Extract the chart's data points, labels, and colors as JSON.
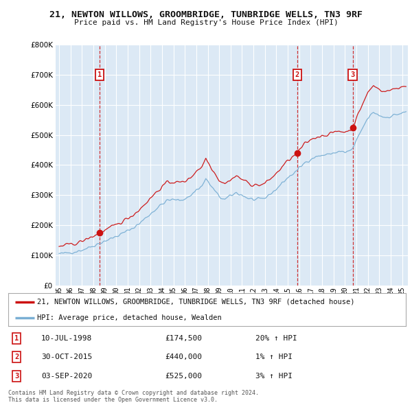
{
  "title": "21, NEWTON WILLOWS, GROOMBRIDGE, TUNBRIDGE WELLS, TN3 9RF",
  "subtitle": "Price paid vs. HM Land Registry's House Price Index (HPI)",
  "background_color": "#ffffff",
  "plot_bg_color": "#dce9f5",
  "grid_color": "#ffffff",
  "ylim": [
    0,
    800000
  ],
  "yticks": [
    0,
    100000,
    200000,
    300000,
    400000,
    500000,
    600000,
    700000,
    800000
  ],
  "ytick_labels": [
    "£0",
    "£100K",
    "£200K",
    "£300K",
    "£400K",
    "£500K",
    "£600K",
    "£700K",
    "£800K"
  ],
  "hpi_color": "#7aafd4",
  "price_color": "#cc1111",
  "sale_marker_color": "#cc1111",
  "dashed_color": "#cc1111",
  "transactions": [
    {
      "label": "1",
      "date_x": 1998.53,
      "price": 174500,
      "pct": "20%",
      "date_str": "10-JUL-1998"
    },
    {
      "label": "2",
      "date_x": 2015.83,
      "price": 440000,
      "pct": "1%",
      "date_str": "30-OCT-2015"
    },
    {
      "label": "3",
      "date_x": 2020.67,
      "price": 525000,
      "pct": "3%",
      "date_str": "03-SEP-2020"
    }
  ],
  "legend_property_label": "21, NEWTON WILLOWS, GROOMBRIDGE, TUNBRIDGE WELLS, TN3 9RF (detached house)",
  "legend_hpi_label": "HPI: Average price, detached house, Wealden",
  "footnote": "Contains HM Land Registry data © Crown copyright and database right 2024.\nThis data is licensed under the Open Government Licence v3.0.",
  "xtick_years": [
    1995,
    1996,
    1997,
    1998,
    1999,
    2000,
    2001,
    2002,
    2003,
    2004,
    2005,
    2006,
    2007,
    2008,
    2009,
    2010,
    2011,
    2012,
    2013,
    2014,
    2015,
    2016,
    2017,
    2018,
    2019,
    2020,
    2021,
    2022,
    2023,
    2024,
    2025
  ]
}
